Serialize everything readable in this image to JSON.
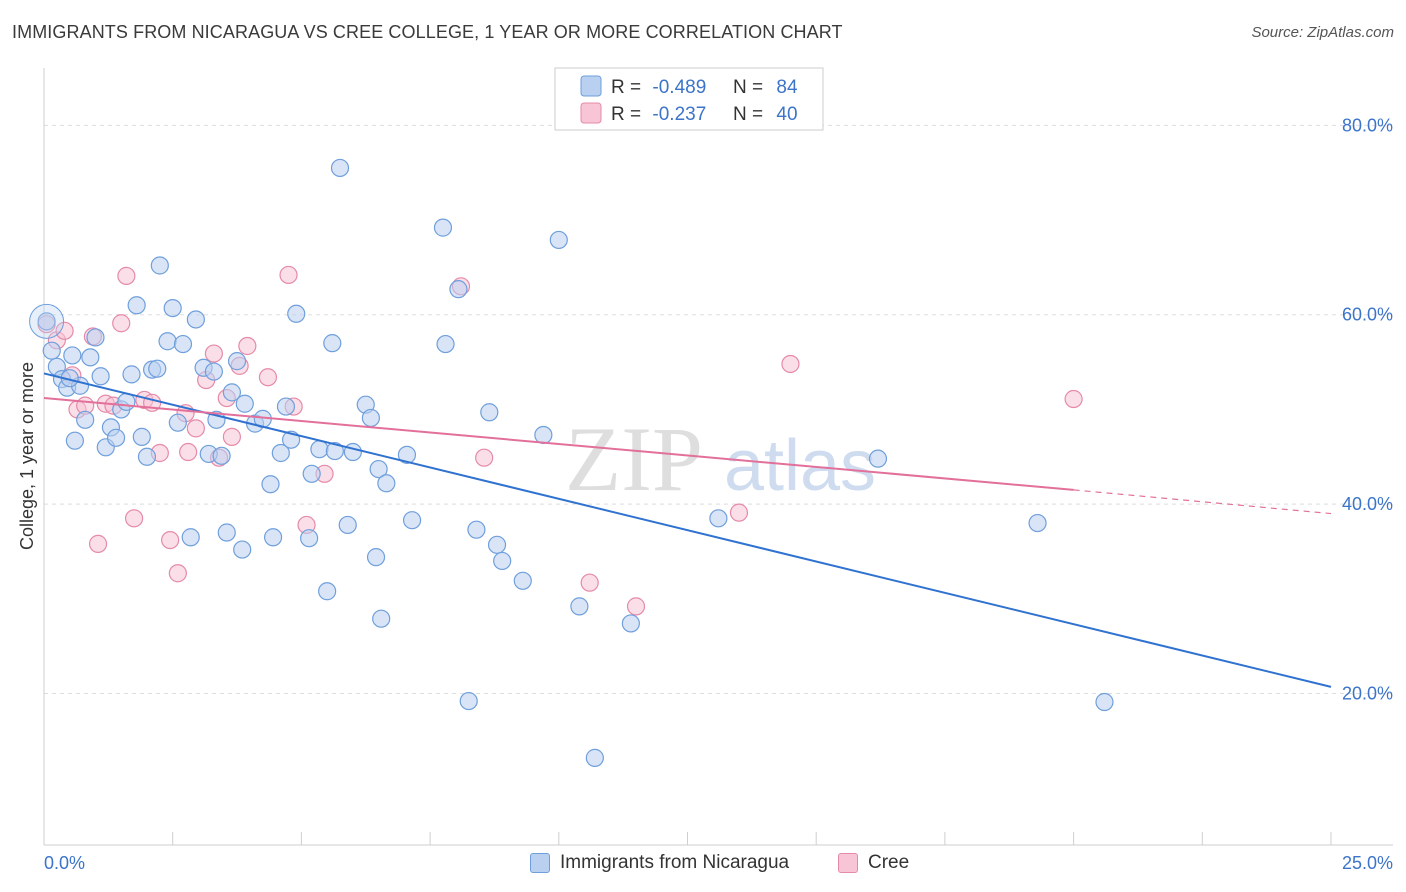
{
  "header": {
    "title": "IMMIGRANTS FROM NICARAGUA VS CREE COLLEGE, 1 YEAR OR MORE CORRELATION CHART",
    "source": "Source: ZipAtlas.com"
  },
  "watermark": {
    "zip": "ZIP",
    "atlas": "atlas"
  },
  "legend_top": [
    {
      "r_label": "R =",
      "r_value": "-0.489",
      "n_label": "N =",
      "n_value": "84"
    },
    {
      "r_label": "R =",
      "r_value": "-0.237",
      "n_label": "N =",
      "n_value": "40"
    }
  ],
  "legend_bottom": [
    {
      "label": "Immigrants from Nicaragua"
    },
    {
      "label": "Cree"
    }
  ],
  "colors": {
    "blue_fill": "#b9d0f0",
    "blue_stroke": "#6f9fdc",
    "blue_line": "#2f72d0",
    "pink_fill": "#f7c5d5",
    "pink_stroke": "#e58aa8",
    "pink_line": "#e2709a",
    "value_text": "#3b74c9",
    "grid": "#dddddd"
  },
  "chart_data": {
    "type": "scatter",
    "title": "IMMIGRANTS FROM NICARAGUA VS CREE COLLEGE, 1 YEAR OR MORE CORRELATION CHART",
    "xlabel": "",
    "ylabel": "College, 1 year or more",
    "xlim": [
      0,
      25
    ],
    "ylim": [
      4,
      85
    ],
    "x_tick_labels": [
      "0.0%",
      "25.0%"
    ],
    "y_tick_labels": [
      "20.0%",
      "40.0%",
      "60.0%",
      "80.0%"
    ],
    "y_ticks": [
      20,
      40,
      60,
      80
    ],
    "grid": true,
    "legend_position": "top-center",
    "series": [
      {
        "name": "Immigrants from Nicaragua",
        "r": -0.489,
        "n": 84,
        "points": [
          [
            0.05,
            59.3
          ],
          [
            0.15,
            56.2
          ],
          [
            0.25,
            54.5
          ],
          [
            0.35,
            53.2
          ],
          [
            0.45,
            52.3
          ],
          [
            0.55,
            55.7
          ],
          [
            0.6,
            46.7
          ],
          [
            0.7,
            52.5
          ],
          [
            0.8,
            48.9
          ],
          [
            0.9,
            55.5
          ],
          [
            1.0,
            57.6
          ],
          [
            1.1,
            53.5
          ],
          [
            1.2,
            46.0
          ],
          [
            1.3,
            48.1
          ],
          [
            1.4,
            47.0
          ],
          [
            1.5,
            50.0
          ],
          [
            1.6,
            50.8
          ],
          [
            1.7,
            53.7
          ],
          [
            1.8,
            61.0
          ],
          [
            1.9,
            47.1
          ],
          [
            2.0,
            45.0
          ],
          [
            2.1,
            54.2
          ],
          [
            2.2,
            54.3
          ],
          [
            2.25,
            65.2
          ],
          [
            2.4,
            57.2
          ],
          [
            2.5,
            60.7
          ],
          [
            2.6,
            48.6
          ],
          [
            2.7,
            56.9
          ],
          [
            2.85,
            36.5
          ],
          [
            2.95,
            59.5
          ],
          [
            3.1,
            54.4
          ],
          [
            3.2,
            45.3
          ],
          [
            3.3,
            54.0
          ],
          [
            3.35,
            48.9
          ],
          [
            3.45,
            45.1
          ],
          [
            3.55,
            37.0
          ],
          [
            3.65,
            51.8
          ],
          [
            3.75,
            55.1
          ],
          [
            3.85,
            35.2
          ],
          [
            3.9,
            50.6
          ],
          [
            4.1,
            48.5
          ],
          [
            4.25,
            49.0
          ],
          [
            4.4,
            42.1
          ],
          [
            4.45,
            36.5
          ],
          [
            4.6,
            45.4
          ],
          [
            4.7,
            50.3
          ],
          [
            4.8,
            46.8
          ],
          [
            4.9,
            60.1
          ],
          [
            5.15,
            36.4
          ],
          [
            5.2,
            43.2
          ],
          [
            5.35,
            45.8
          ],
          [
            5.5,
            30.8
          ],
          [
            5.6,
            57.0
          ],
          [
            5.65,
            45.6
          ],
          [
            5.75,
            75.5
          ],
          [
            5.9,
            37.8
          ],
          [
            6.0,
            45.5
          ],
          [
            6.25,
            50.5
          ],
          [
            6.35,
            49.1
          ],
          [
            6.45,
            34.4
          ],
          [
            6.5,
            43.7
          ],
          [
            6.55,
            27.9
          ],
          [
            6.65,
            42.2
          ],
          [
            7.05,
            45.2
          ],
          [
            7.15,
            38.3
          ],
          [
            7.75,
            69.2
          ],
          [
            7.8,
            56.9
          ],
          [
            8.05,
            62.7
          ],
          [
            8.25,
            19.2
          ],
          [
            8.4,
            37.3
          ],
          [
            8.65,
            49.7
          ],
          [
            8.8,
            35.7
          ],
          [
            8.9,
            34.0
          ],
          [
            9.3,
            31.9
          ],
          [
            9.7,
            47.3
          ],
          [
            10.0,
            67.9
          ],
          [
            10.4,
            29.2
          ],
          [
            10.7,
            13.2
          ],
          [
            11.4,
            27.4
          ],
          [
            13.1,
            38.5
          ],
          [
            16.2,
            44.8
          ],
          [
            19.3,
            38.0
          ],
          [
            20.6,
            19.1
          ],
          [
            0.5,
            53.3
          ]
        ],
        "trend": {
          "x": [
            0,
            25
          ],
          "y": [
            53.8,
            20.7
          ]
        }
      },
      {
        "name": "Cree",
        "r": -0.237,
        "n": 40,
        "points": [
          [
            0.05,
            59.0
          ],
          [
            0.25,
            57.3
          ],
          [
            0.4,
            58.3
          ],
          [
            0.55,
            53.6
          ],
          [
            0.65,
            50.0
          ],
          [
            0.8,
            50.4
          ],
          [
            0.95,
            57.7
          ],
          [
            1.05,
            35.8
          ],
          [
            1.2,
            50.6
          ],
          [
            1.35,
            50.4
          ],
          [
            1.5,
            59.1
          ],
          [
            1.6,
            64.1
          ],
          [
            1.75,
            38.5
          ],
          [
            1.95,
            51.0
          ],
          [
            2.1,
            50.7
          ],
          [
            2.25,
            45.4
          ],
          [
            2.45,
            36.2
          ],
          [
            2.6,
            32.7
          ],
          [
            2.75,
            49.6
          ],
          [
            2.8,
            45.5
          ],
          [
            2.95,
            48.0
          ],
          [
            3.15,
            53.1
          ],
          [
            3.3,
            55.9
          ],
          [
            3.4,
            44.9
          ],
          [
            3.55,
            51.2
          ],
          [
            3.65,
            47.1
          ],
          [
            3.8,
            54.6
          ],
          [
            3.95,
            56.7
          ],
          [
            4.35,
            53.4
          ],
          [
            4.75,
            64.2
          ],
          [
            4.85,
            50.3
          ],
          [
            5.1,
            37.8
          ],
          [
            5.45,
            43.2
          ],
          [
            8.1,
            63.0
          ],
          [
            8.55,
            44.9
          ],
          [
            10.6,
            31.7
          ],
          [
            11.5,
            29.2
          ],
          [
            13.5,
            39.1
          ],
          [
            14.5,
            54.8
          ],
          [
            20.0,
            51.1
          ]
        ],
        "trend": {
          "x": [
            0,
            20
          ],
          "y": [
            51.2,
            41.5
          ],
          "dashed_to": [
            25,
            39.0
          ]
        }
      }
    ]
  }
}
